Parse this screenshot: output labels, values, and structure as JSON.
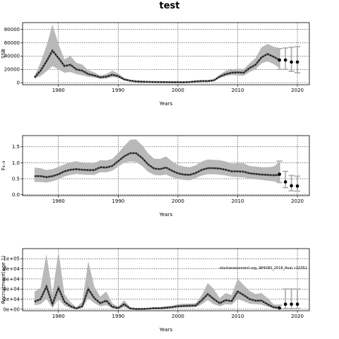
{
  "title": "test",
  "chart_data": [
    {
      "type": "line",
      "xlabel": "Years",
      "ylabel": "SSB",
      "xlim": [
        1974,
        2022
      ],
      "ylim": [
        -3000,
        90000
      ],
      "xticks": [
        1980,
        1990,
        2000,
        2010,
        2020
      ],
      "yticks": [
        0,
        20000,
        40000,
        60000,
        80000
      ],
      "ytick_labels": [
        "0",
        "20000",
        "40000",
        "60000",
        "80000"
      ],
      "x": [
        1976,
        1977,
        1978,
        1979,
        1980,
        1981,
        1982,
        1983,
        1984,
        1985,
        1986,
        1987,
        1988,
        1989,
        1990,
        1991,
        1992,
        1993,
        1994,
        1995,
        1996,
        1997,
        1998,
        1999,
        2000,
        2001,
        2002,
        2003,
        2004,
        2005,
        2006,
        2007,
        2008,
        2009,
        2010,
        2011,
        2012,
        2013,
        2014,
        2015,
        2016,
        2017
      ],
      "series": [
        {
          "values": [
            8000,
            18000,
            32000,
            48000,
            37000,
            25000,
            27000,
            20000,
            18000,
            13000,
            11000,
            8000,
            9000,
            12000,
            10000,
            5000,
            3000,
            2000,
            1500,
            1200,
            1000,
            900,
            800,
            700,
            700,
            700,
            1000,
            2000,
            2500,
            2500,
            3500,
            9000,
            13000,
            15000,
            15500,
            15000,
            22000,
            27000,
            38000,
            43000,
            39000,
            34000
          ]
        },
        {
          "values": [
            6000,
            10000,
            17000,
            25000,
            20000,
            15000,
            16000,
            13000,
            11000,
            9000,
            8000,
            6000,
            6500,
            8500,
            7500,
            3500,
            2000,
            1300,
            1000,
            800,
            700,
            600,
            500,
            450,
            450,
            500,
            700,
            1500,
            1800,
            1800,
            2600,
            7000,
            10000,
            11500,
            11000,
            10500,
            16000,
            20000,
            29000,
            32000,
            28000,
            22000
          ]
        },
        {
          "values": [
            10000,
            30000,
            55000,
            87000,
            58000,
            35000,
            40000,
            30000,
            27000,
            19000,
            15500,
            11000,
            13000,
            18000,
            14000,
            7000,
            4500,
            3000,
            2200,
            1800,
            1500,
            1300,
            1200,
            1000,
            1000,
            1000,
            1400,
            2800,
            3400,
            3300,
            4700,
            12000,
            18000,
            20000,
            21000,
            20500,
            29000,
            37000,
            53000,
            58000,
            54000,
            52000
          ]
        }
      ],
      "projection": {
        "x": [
          2017,
          2018,
          2019,
          2020
        ],
        "point": [
          34000,
          34000,
          31000,
          31000
        ],
        "low": [
          20000,
          20000,
          17000,
          15000
        ],
        "high": [
          51000,
          52000,
          53000,
          54000
        ]
      }
    },
    {
      "type": "line",
      "xlabel": "Years",
      "ylabel": "F₄₋₈",
      "xlim": [
        1974,
        2022
      ],
      "ylim": [
        -0.03,
        1.85
      ],
      "xticks": [
        1980,
        1990,
        2000,
        2010,
        2020
      ],
      "yticks": [
        0.0,
        0.5,
        1.0,
        1.5
      ],
      "ytick_labels": [
        "0.0",
        "0.5",
        "1.0",
        "1.5"
      ],
      "x": [
        1976,
        1977,
        1978,
        1979,
        1980,
        1981,
        1982,
        1983,
        1984,
        1985,
        1986,
        1987,
        1988,
        1989,
        1990,
        1991,
        1992,
        1993,
        1994,
        1995,
        1996,
        1997,
        1998,
        1999,
        2000,
        2001,
        2002,
        2003,
        2004,
        2005,
        2006,
        2007,
        2008,
        2009,
        2010,
        2011,
        2012,
        2013,
        2014,
        2015,
        2016,
        2017
      ],
      "series": [
        {
          "values": [
            0.58,
            0.58,
            0.55,
            0.58,
            0.64,
            0.73,
            0.78,
            0.8,
            0.78,
            0.77,
            0.77,
            0.86,
            0.85,
            0.9,
            1.05,
            1.2,
            1.3,
            1.3,
            1.15,
            0.95,
            0.82,
            0.8,
            0.85,
            0.75,
            0.67,
            0.63,
            0.62,
            0.68,
            0.78,
            0.83,
            0.83,
            0.82,
            0.78,
            0.73,
            0.73,
            0.72,
            0.67,
            0.65,
            0.63,
            0.62,
            0.61,
            0.62
          ]
        },
        {
          "values": [
            0.4,
            0.4,
            0.38,
            0.42,
            0.48,
            0.57,
            0.62,
            0.65,
            0.63,
            0.62,
            0.62,
            0.7,
            0.7,
            0.75,
            0.88,
            1.0,
            1.04,
            1.02,
            0.9,
            0.72,
            0.62,
            0.6,
            0.63,
            0.55,
            0.49,
            0.46,
            0.45,
            0.52,
            0.6,
            0.64,
            0.64,
            0.63,
            0.6,
            0.56,
            0.55,
            0.54,
            0.5,
            0.48,
            0.46,
            0.44,
            0.42,
            0.38
          ]
        },
        {
          "values": [
            0.85,
            0.83,
            0.77,
            0.8,
            0.87,
            0.95,
            1.01,
            1.05,
            1.0,
            0.98,
            0.98,
            1.08,
            1.07,
            1.12,
            1.3,
            1.52,
            1.72,
            1.73,
            1.55,
            1.3,
            1.13,
            1.12,
            1.2,
            1.05,
            0.93,
            0.88,
            0.86,
            0.92,
            1.04,
            1.1,
            1.09,
            1.08,
            1.04,
            0.97,
            0.98,
            0.98,
            0.9,
            0.88,
            0.86,
            0.86,
            0.88,
            1.03
          ]
        }
      ],
      "projection": {
        "x": [
          2017,
          2018,
          2019,
          2020
        ],
        "point": [
          0.64,
          0.4,
          0.28,
          0.27
        ],
        "low": [
          0.38,
          0.22,
          0.12,
          0.11
        ],
        "high": [
          1.05,
          0.73,
          0.6,
          0.58
        ]
      }
    },
    {
      "type": "line",
      "xlabel": "Years",
      "ylabel": "Recruitment(age 1)",
      "xlim": [
        1974,
        2022
      ],
      "ylim": [
        -3000,
        120000
      ],
      "xticks": [
        1980,
        1990,
        2000,
        2010,
        2020
      ],
      "yticks": [
        0,
        20000,
        40000,
        60000,
        80000,
        100000
      ],
      "ytick_labels": [
        "0e+00",
        "2e+04",
        "4e+04",
        "6e+04",
        "8e+04",
        "1e+05"
      ],
      "annotation": "stockassessment.org, WHitNS_2018_final, r10351",
      "x": [
        1976,
        1977,
        1978,
        1979,
        1980,
        1981,
        1982,
        1983,
        1984,
        1985,
        1986,
        1987,
        1988,
        1989,
        1990,
        1991,
        1992,
        1993,
        1994,
        1995,
        1996,
        1997,
        1998,
        1999,
        2000,
        2001,
        2002,
        2003,
        2004,
        2005,
        2006,
        2007,
        2008,
        2009,
        2010,
        2011,
        2012,
        2013,
        2014,
        2015,
        2016,
        2017
      ],
      "series": [
        {
          "values": [
            15000,
            20000,
            45000,
            10000,
            42000,
            15000,
            6000,
            1500,
            6000,
            40000,
            22000,
            12000,
            17000,
            5000,
            2000,
            10000,
            1500,
            500,
            500,
            1000,
            2000,
            2000,
            3000,
            4000,
            6000,
            6500,
            7000,
            7500,
            18000,
            30000,
            20000,
            12000,
            18000,
            16000,
            35000,
            28000,
            20000,
            17000,
            17000,
            10000,
            4000,
            2500
          ]
        },
        {
          "values": [
            8000,
            10000,
            20000,
            3000,
            20000,
            7000,
            2500,
            500,
            2500,
            22000,
            12000,
            6000,
            8000,
            2000,
            800,
            4000,
            500,
            200,
            200,
            500,
            1000,
            1000,
            1500,
            2000,
            3000,
            3500,
            3500,
            4000,
            10000,
            18000,
            10000,
            6000,
            10000,
            9000,
            20000,
            16000,
            11000,
            10000,
            9000,
            5000,
            1500,
            800
          ]
        },
        {
          "values": [
            35000,
            42000,
            110000,
            30000,
            115000,
            30000,
            14000,
            4000,
            15000,
            95000,
            45000,
            25000,
            35000,
            12000,
            5000,
            18000,
            4000,
            1500,
            1500,
            2000,
            4000,
            4000,
            5500,
            7000,
            10000,
            11000,
            11000,
            12000,
            28000,
            52000,
            40000,
            22000,
            32000,
            28000,
            60000,
            48000,
            36000,
            30000,
            32000,
            22000,
            10000,
            8000
          ]
        }
      ],
      "projection": {
        "x": [
          2017,
          2018,
          2019,
          2020
        ],
        "point": [
          2500,
          10000,
          10000,
          10000
        ],
        "low": [
          800,
          1000,
          1000,
          1000
        ],
        "high": [
          8000,
          40000,
          40000,
          40000
        ]
      }
    }
  ]
}
